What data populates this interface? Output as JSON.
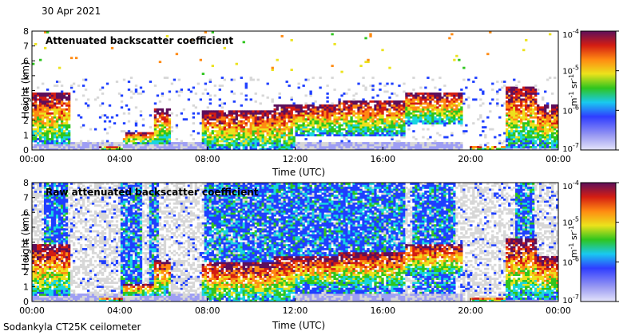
{
  "date_label": "30 Apr 2021",
  "footer_label": "Sodankyla CT25K ceilometer",
  "chart_data": [
    {
      "type": "heatmap",
      "title": "Attenuated backscatter coefficient",
      "xlabel": "Time (UTC)",
      "ylabel": "Height (km)",
      "x_ticks": [
        "00:00",
        "04:00",
        "08:00",
        "12:00",
        "16:00",
        "20:00",
        "00:00"
      ],
      "y_ticks": [
        "0",
        "1",
        "2",
        "3",
        "4",
        "5",
        "6",
        "7",
        "8"
      ],
      "xlim": [
        0,
        24
      ],
      "ylim": [
        0,
        8
      ],
      "colorbar": {
        "scale": "log",
        "ticks": [
          "10-7",
          "10-6",
          "10-5",
          "10-4"
        ],
        "unit": "m-1 sr-1",
        "range": [
          1e-07,
          0.0001
        ]
      }
    },
    {
      "type": "heatmap",
      "title": "Raw attenuated backscatter coefficient",
      "xlabel": "Time (UTC)",
      "ylabel": "Height (km)",
      "x_ticks": [
        "00:00",
        "04:00",
        "08:00",
        "12:00",
        "16:00",
        "20:00",
        "00:00"
      ],
      "y_ticks": [
        "0",
        "1",
        "2",
        "3",
        "4",
        "5",
        "6",
        "7",
        "8"
      ],
      "xlim": [
        0,
        24
      ],
      "ylim": [
        0,
        8
      ],
      "colorbar": {
        "scale": "log",
        "ticks": [
          "10-7",
          "10-6",
          "10-5",
          "10-4"
        ],
        "unit": "m-1 sr-1",
        "range": [
          1e-07,
          0.0001
        ]
      }
    }
  ],
  "colors": {
    "low": "#9e9ef4",
    "noise": "#d7d7d7",
    "blue": "#1f3fff",
    "cyan": "#19d6e0",
    "green": "#2fc51e",
    "yellow": "#ece21c",
    "orange": "#ff8a12",
    "red": "#d41d12",
    "dark": "#5e0f5a"
  }
}
